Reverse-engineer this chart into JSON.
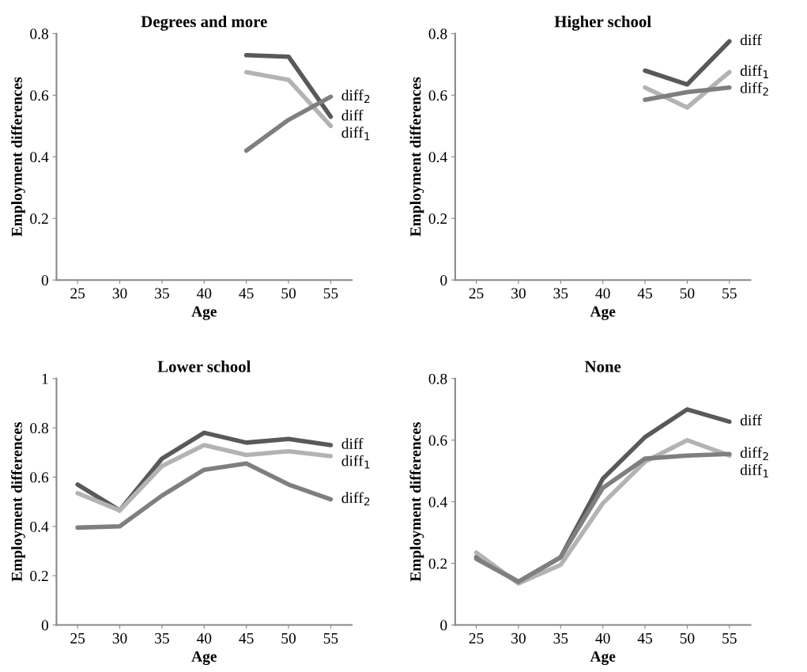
{
  "chart_data": [
    {
      "type": "line",
      "title": "Degrees and more",
      "xlabel": "Age",
      "ylabel": "Employment differences",
      "categories": [
        "25",
        "30",
        "35",
        "40",
        "45",
        "50",
        "55"
      ],
      "ylim": [
        0,
        0.8
      ],
      "yticks": [
        0,
        0.2,
        0.4,
        0.6,
        0.8
      ],
      "series": [
        {
          "name": "diff",
          "color": "#595959",
          "values": [
            null,
            null,
            null,
            null,
            0.73,
            0.725,
            0.53
          ]
        },
        {
          "name": "diff$_{1}$",
          "color": "#b3b3b3",
          "values": [
            null,
            null,
            null,
            null,
            0.675,
            0.65,
            0.5
          ]
        },
        {
          "name": "diff$_{2}$",
          "color": "#7f7f7f",
          "values": [
            null,
            null,
            null,
            null,
            0.42,
            0.52,
            0.595
          ]
        }
      ]
    },
    {
      "type": "line",
      "title": "Higher school",
      "xlabel": "Age",
      "ylabel": "Employment differences",
      "categories": [
        "25",
        "30",
        "35",
        "40",
        "45",
        "50",
        "55"
      ],
      "ylim": [
        0,
        0.8
      ],
      "yticks": [
        0,
        0.2,
        0.4,
        0.6,
        0.8
      ],
      "series": [
        {
          "name": "diff",
          "color": "#595959",
          "values": [
            null,
            null,
            null,
            null,
            0.68,
            0.635,
            0.775
          ]
        },
        {
          "name": "diff$_{1}$",
          "color": "#b3b3b3",
          "values": [
            null,
            null,
            null,
            null,
            0.625,
            0.56,
            0.675
          ]
        },
        {
          "name": "diff$_{2}$",
          "color": "#7f7f7f",
          "values": [
            null,
            null,
            null,
            null,
            0.585,
            0.61,
            0.625
          ]
        }
      ]
    },
    {
      "type": "line",
      "title": "Lower school",
      "xlabel": "Age",
      "ylabel": "Employment differences",
      "categories": [
        "25",
        "30",
        "35",
        "40",
        "45",
        "50",
        "55"
      ],
      "ylim": [
        0,
        1
      ],
      "yticks": [
        0,
        0.2,
        0.4,
        0.6,
        0.8,
        1
      ],
      "series": [
        {
          "name": "diff",
          "color": "#595959",
          "values": [
            0.57,
            0.465,
            0.675,
            0.78,
            0.74,
            0.755,
            0.73
          ]
        },
        {
          "name": "diff$_{1}$",
          "color": "#b3b3b3",
          "values": [
            0.535,
            0.465,
            0.645,
            0.73,
            0.69,
            0.705,
            0.685
          ]
        },
        {
          "name": "diff$_{2}$",
          "color": "#7f7f7f",
          "values": [
            0.395,
            0.4,
            0.525,
            0.63,
            0.655,
            0.57,
            0.51
          ]
        }
      ]
    },
    {
      "type": "line",
      "title": "None",
      "xlabel": "Age",
      "ylabel": "Employment differences",
      "categories": [
        "25",
        "30",
        "35",
        "40",
        "45",
        "50",
        "55"
      ],
      "ylim": [
        0,
        0.8
      ],
      "yticks": [
        0,
        0.2,
        0.4,
        0.6,
        0.8
      ],
      "series": [
        {
          "name": "diff",
          "color": "#595959",
          "values": [
            0.22,
            0.14,
            0.22,
            0.475,
            0.61,
            0.7,
            0.66
          ]
        },
        {
          "name": "diff$_{1}$",
          "color": "#b3b3b3",
          "values": [
            0.235,
            0.135,
            0.195,
            0.395,
            0.53,
            0.6,
            0.55
          ]
        },
        {
          "name": "diff$_{2}$",
          "color": "#7f7f7f",
          "values": [
            0.215,
            0.14,
            0.22,
            0.445,
            0.54,
            0.55,
            0.555
          ]
        }
      ]
    }
  ]
}
